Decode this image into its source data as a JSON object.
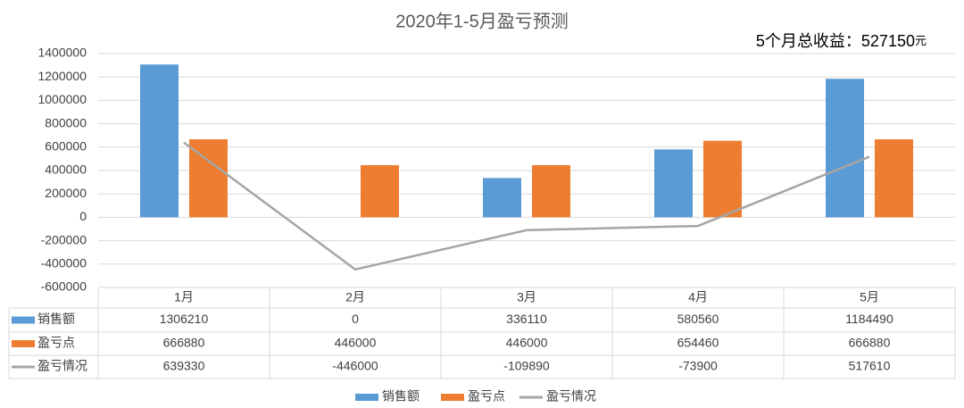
{
  "chart_data": {
    "type": "bar",
    "title": "2020年1-5月盈亏预测",
    "annotation": {
      "label": "5个月总收益：",
      "value": 527150,
      "unit": "元"
    },
    "categories": [
      "1月",
      "2月",
      "3月",
      "4月",
      "5月"
    ],
    "series": [
      {
        "name": "销售额",
        "type": "bar",
        "color": "#5b9bd5",
        "values": [
          1306210,
          0,
          336110,
          580560,
          1184490
        ]
      },
      {
        "name": "盈亏点",
        "type": "bar",
        "color": "#ed7d31",
        "values": [
          666880,
          446000,
          446000,
          654460,
          666880
        ]
      },
      {
        "name": "盈亏情况",
        "type": "line",
        "color": "#a5a5a5",
        "values": [
          639330,
          -446000,
          -109890,
          -73900,
          517610
        ]
      }
    ],
    "ylim": [
      -600000,
      1400000
    ],
    "yticks": [
      -600000,
      -400000,
      -200000,
      0,
      200000,
      400000,
      600000,
      800000,
      1000000,
      1200000,
      1400000
    ],
    "grid": true,
    "data_table": true,
    "legend": "bottom"
  }
}
